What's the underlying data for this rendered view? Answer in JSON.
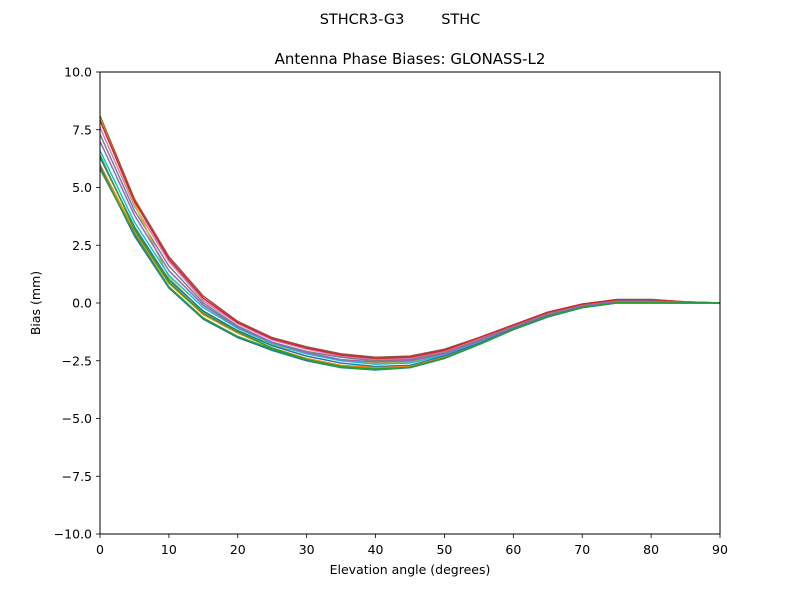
{
  "figure": {
    "suptitle": "STHCR3-G3        STHC"
  },
  "chart_data": {
    "type": "line",
    "title": "Antenna Phase Biases: GLONASS-L2",
    "xlabel": "Elevation angle (degrees)",
    "ylabel": "Bias (mm)",
    "xlim": [
      0,
      90
    ],
    "ylim": [
      -10,
      10
    ],
    "xticks": [
      0,
      10,
      20,
      30,
      40,
      50,
      60,
      70,
      80,
      90
    ],
    "xtick_labels": [
      "0",
      "10",
      "20",
      "30",
      "40",
      "50",
      "60",
      "70",
      "80",
      "90"
    ],
    "yticks": [
      -10,
      -7.5,
      -5,
      -2.5,
      0,
      2.5,
      5,
      7.5,
      10
    ],
    "ytick_labels": [
      "−10.0",
      "−7.5",
      "−5.0",
      "−2.5",
      "0.0",
      "2.5",
      "5.0",
      "7.5",
      "10.0"
    ],
    "grid": false,
    "legend": "none",
    "x": [
      0,
      5,
      10,
      15,
      20,
      25,
      30,
      35,
      40,
      45,
      50,
      55,
      60,
      65,
      70,
      75,
      80,
      85,
      90
    ],
    "series": [
      {
        "color": "#8c564b",
        "values": [
          8.1,
          4.5,
          2.0,
          0.3,
          -0.8,
          -1.5,
          -1.9,
          -2.2,
          -2.35,
          -2.3,
          -2.0,
          -1.5,
          -0.95,
          -0.4,
          -0.05,
          0.15,
          0.15,
          0.05,
          0.0
        ]
      },
      {
        "color": "#e377c2",
        "values": [
          7.6,
          4.2,
          1.8,
          0.1,
          -0.9,
          -1.6,
          -2.0,
          -2.3,
          -2.45,
          -2.4,
          -2.1,
          -1.55,
          -0.95,
          -0.45,
          -0.1,
          0.12,
          0.12,
          0.05,
          0.0
        ]
      },
      {
        "color": "#7f7f7f",
        "values": [
          7.3,
          4.0,
          1.6,
          0.0,
          -1.0,
          -1.7,
          -2.1,
          -2.35,
          -2.5,
          -2.45,
          -2.15,
          -1.6,
          -1.0,
          -0.45,
          -0.1,
          0.1,
          0.1,
          0.04,
          0.0
        ]
      },
      {
        "color": "#bcbd22",
        "values": [
          8.0,
          4.3,
          1.1,
          -0.4,
          -1.2,
          -1.8,
          -2.2,
          -2.5,
          -2.6,
          -2.55,
          -2.2,
          -1.65,
          -1.05,
          -0.5,
          -0.12,
          0.08,
          0.08,
          0.03,
          0.0
        ]
      },
      {
        "color": "#17becf",
        "values": [
          6.6,
          3.5,
          1.2,
          -0.2,
          -1.1,
          -1.75,
          -2.2,
          -2.5,
          -2.65,
          -2.6,
          -2.25,
          -1.7,
          -1.1,
          -0.55,
          -0.15,
          0.06,
          0.06,
          0.02,
          0.0
        ]
      },
      {
        "color": "#1f77b4",
        "values": [
          6.3,
          3.3,
          1.0,
          -0.35,
          -1.2,
          -1.85,
          -2.3,
          -2.6,
          -2.75,
          -2.7,
          -2.3,
          -1.75,
          -1.1,
          -0.55,
          -0.15,
          0.05,
          0.05,
          0.02,
          0.0
        ]
      },
      {
        "color": "#ff7f0e",
        "values": [
          6.0,
          3.1,
          0.85,
          -0.5,
          -1.3,
          -1.95,
          -2.4,
          -2.7,
          -2.8,
          -2.75,
          -2.35,
          -1.8,
          -1.15,
          -0.6,
          -0.18,
          0.03,
          0.03,
          0.01,
          0.0
        ]
      },
      {
        "color": "#d62728",
        "values": [
          7.9,
          4.4,
          1.9,
          0.2,
          -0.85,
          -1.55,
          -1.95,
          -2.25,
          -2.4,
          -2.35,
          -2.05,
          -1.5,
          -0.95,
          -0.4,
          -0.05,
          0.14,
          0.14,
          0.05,
          0.0
        ]
      },
      {
        "color": "#9467bd",
        "values": [
          7.0,
          3.8,
          1.4,
          -0.1,
          -1.05,
          -1.7,
          -2.15,
          -2.45,
          -2.55,
          -2.5,
          -2.2,
          -1.65,
          -1.05,
          -0.5,
          -0.12,
          0.08,
          0.08,
          0.03,
          0.0
        ]
      },
      {
        "color": "#2ca02c",
        "values": [
          6.4,
          3.2,
          0.9,
          -0.45,
          -1.25,
          -1.95,
          -2.45,
          -2.75,
          -2.85,
          -2.8,
          -2.4,
          -1.8,
          -1.15,
          -0.6,
          -0.2,
          0.0,
          0.0,
          0.0,
          0.0
        ]
      },
      {
        "color": "#1f77b4",
        "values": [
          5.9,
          2.9,
          0.65,
          -0.7,
          -1.5,
          -2.05,
          -2.5,
          -2.8,
          -2.9,
          -2.8,
          -2.4,
          -1.8,
          -1.15,
          -0.6,
          -0.2,
          0.0,
          0.0,
          0.0,
          0.0
        ]
      },
      {
        "color": "#2ca02c",
        "values": [
          5.8,
          3.0,
          0.7,
          -0.65,
          -1.45,
          -2.0,
          -2.45,
          -2.78,
          -2.88,
          -2.78,
          -2.38,
          -1.78,
          -1.13,
          -0.58,
          -0.18,
          0.01,
          0.01,
          0.0,
          0.0
        ]
      }
    ]
  }
}
